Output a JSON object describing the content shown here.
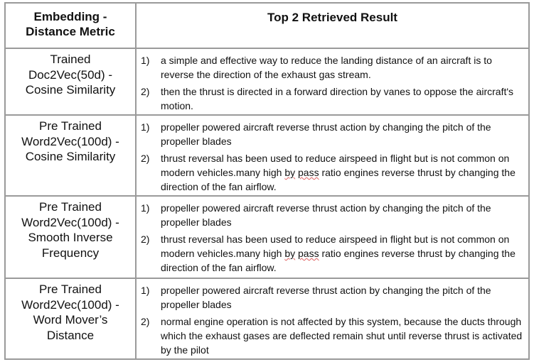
{
  "table": {
    "headers": [
      "Embedding -\nDistance Metric",
      "Top 2 Retrieved Result"
    ],
    "rows": [
      {
        "metric": [
          "Trained",
          "Doc2Vec(50d) -",
          "Cosine Similarity"
        ],
        "results": [
          {
            "num": "1)",
            "text": "a simple and effective way to reduce the landing distance of an aircraft is to reverse the direction of the exhaust gas stream."
          },
          {
            "num": "2)",
            "text": "then the thrust is directed in a forward direction by vanes to oppose the aircraft's motion."
          }
        ]
      },
      {
        "metric": [
          "Pre Trained",
          "Word2Vec(100d) -",
          "Cosine Similarity"
        ],
        "results": [
          {
            "num": "1)",
            "text": "propeller powered aircraft reverse thrust action by changing the pitch of the propeller blades"
          },
          {
            "num": "2)",
            "text": "thrust reversal has been used to reduce airspeed in flight but is not common on modern vehicles.many high by pass ratio engines reverse thrust by changing the direction of the fan airflow."
          }
        ]
      },
      {
        "metric": [
          "Pre Trained",
          "Word2Vec(100d) -",
          "Smooth Inverse",
          "Frequency"
        ],
        "results": [
          {
            "num": "1)",
            "text": "propeller powered aircraft reverse thrust action by changing the pitch of the propeller blades"
          },
          {
            "num": "2)",
            "text": "thrust reversal has been used to reduce airspeed in flight but is not common on modern vehicles.many high by pass ratio engines reverse thrust by changing the direction of the fan airflow."
          }
        ]
      },
      {
        "metric": [
          "Pre Trained",
          "Word2Vec(100d) -",
          "Word Mover’s",
          "Distance"
        ],
        "results": [
          {
            "num": "1)",
            "text": "propeller powered aircraft reverse thrust action by changing the pitch of the propeller blades"
          },
          {
            "num": "2)",
            "text": "normal engine operation is not affected by this system, because the ducts through which the exhaust gases are deflected remain shut until reverse thrust is activated by the pilot"
          }
        ]
      }
    ]
  }
}
